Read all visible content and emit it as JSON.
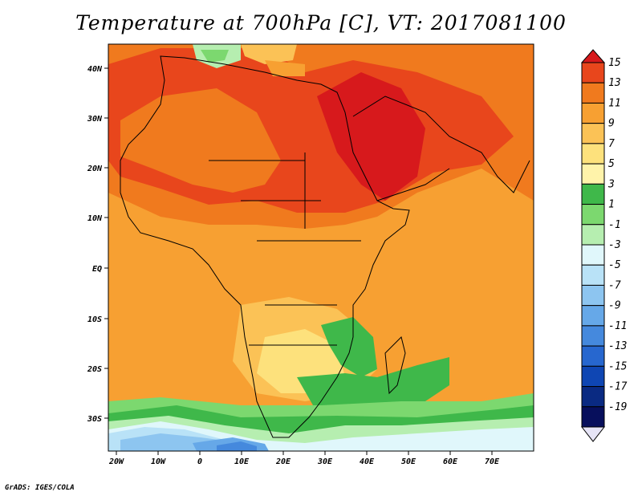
{
  "title": "Temperature at 700hPa [C], VT: 2017081100",
  "credit": "GrADS: IGES/COLA",
  "axes": {
    "lon_ticks": [
      "20W",
      "10W",
      "0",
      "10E",
      "20E",
      "30E",
      "40E",
      "50E",
      "60E",
      "70E"
    ],
    "lat_ticks": [
      "40N",
      "30N",
      "20N",
      "10N",
      "EQ",
      "10S",
      "20S",
      "30S"
    ]
  },
  "colorbar": {
    "labels": [
      "15",
      "13",
      "11",
      "9",
      "7",
      "5",
      "3",
      "1",
      "-1",
      "-3",
      "-5",
      "-7",
      "-9",
      "-11",
      "-13",
      "-15",
      "-17",
      "-19"
    ],
    "colors": [
      "#d7191c",
      "#e8461c",
      "#f07a1e",
      "#f7a032",
      "#fbc256",
      "#fde17c",
      "#fff3aa",
      "#3fb84a",
      "#7cd86f",
      "#b6eeb0",
      "#e0f7fb",
      "#b9e2f7",
      "#8dc5f0",
      "#66a8e8",
      "#4589dd",
      "#2767cf",
      "#0f46b3",
      "#0a2a82",
      "#070f5c",
      "#e6e4f6"
    ]
  }
}
